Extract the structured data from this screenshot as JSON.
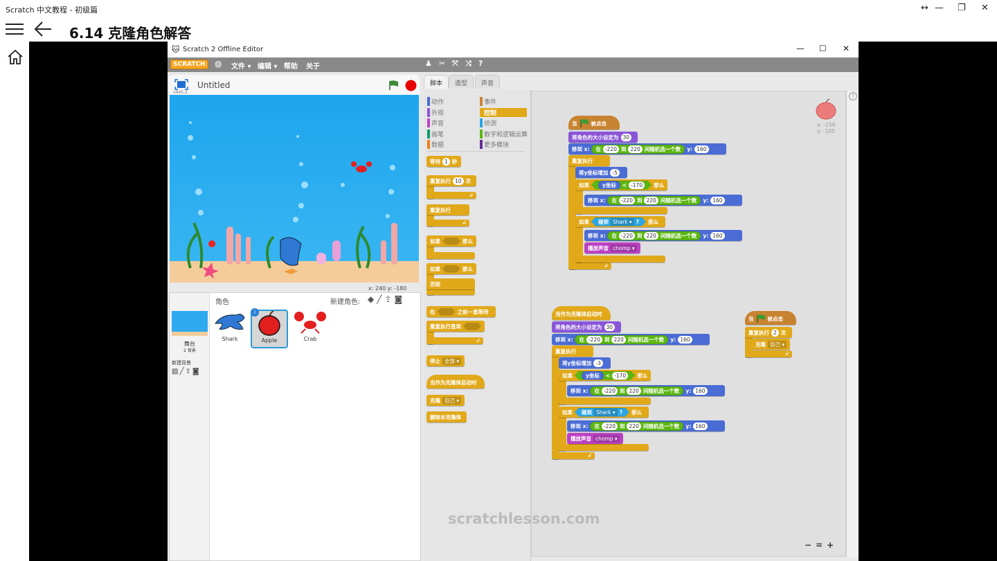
{
  "app": {
    "window_title": "Scratch 中文教程 - 初级篇",
    "lesson_title": "6.14  克隆角色解答",
    "icons": [
      "resize-icon",
      "minimize-icon",
      "restore-icon",
      "close-icon",
      "hamburger-icon",
      "back-arrow-icon",
      "home-icon"
    ]
  },
  "editor": {
    "window_title": "Scratch 2 Offline Editor",
    "logo": "SCRATCH",
    "menu": [
      "文件 ▾",
      "编辑 ▾",
      "帮助",
      "关于"
    ],
    "toolbar_icons": [
      "duplicate-icon",
      "delete-icon",
      "grow-icon",
      "shrink-icon",
      "help-icon"
    ],
    "project_name": "Untitled",
    "version": "v445.2",
    "stage_coords": "x: 240   y: -180",
    "sprite_pane": {
      "header": "角色",
      "new_sprite": "新建角色:",
      "stage_label": "舞台",
      "backdrops": "2 背景",
      "new_backdrop": "新建背景",
      "sprites": [
        "Shark",
        "Apple",
        "Crab"
      ],
      "selected": "Apple"
    },
    "tabs": [
      "脚本",
      "造型",
      "声音"
    ],
    "active_tab": "脚本",
    "categories_left": [
      "动作",
      "外观",
      "声音",
      "画笔",
      "数据"
    ],
    "categories_right": [
      "事件",
      "控制",
      "侦测",
      "数字和逻辑运算",
      "更多模块"
    ],
    "active_category": "控制",
    "category_colors": {
      "动作": "#4a6cd4",
      "外观": "#8a55d7",
      "声音": "#bb42c3",
      "画笔": "#0e9a6c",
      "数据": "#ee7d16",
      "事件": "#c88330",
      "控制": "#e1a91a",
      "侦测": "#2ca5e2",
      "数字和逻辑运算": "#5cb712",
      "更多模块": "#632d99"
    },
    "sprite_info": {
      "x": "x: -159",
      "y": "y: -105"
    },
    "watermark": "scratchlesson.com",
    "zoom_controls": [
      "−",
      "=",
      "+"
    ]
  },
  "palette": [
    {
      "cat": "control",
      "parts": [
        {
          "t": "label",
          "v": "等待"
        },
        {
          "t": "num",
          "v": "1"
        },
        {
          "t": "label",
          "v": "秒"
        }
      ]
    },
    {
      "cat": "control",
      "parts": [
        {
          "t": "label",
          "v": "重复执行"
        },
        {
          "t": "num",
          "v": "10"
        },
        {
          "t": "label",
          "v": "次"
        }
      ]
    },
    {
      "cat": "control",
      "parts": [
        {
          "t": "label",
          "v": "重复执行"
        }
      ]
    },
    {
      "cat": "control",
      "parts": [
        {
          "t": "label",
          "v": "如果"
        },
        {
          "t": "slot"
        },
        {
          "t": "label",
          "v": "那么"
        }
      ]
    },
    {
      "cat": "control",
      "parts": [
        {
          "t": "label",
          "v": "如果"
        },
        {
          "t": "slot"
        },
        {
          "t": "label",
          "v": "那么"
        }
      ]
    },
    {
      "cat": "control",
      "parts": [
        {
          "t": "label",
          "v": "否则"
        }
      ]
    },
    {
      "cat": "control",
      "parts": [
        {
          "t": "label",
          "v": "在"
        },
        {
          "t": "slot"
        },
        {
          "t": "label",
          "v": "之前一直等待"
        }
      ]
    },
    {
      "cat": "control",
      "parts": [
        {
          "t": "label",
          "v": "重复执行直到"
        },
        {
          "t": "slot"
        }
      ]
    },
    {
      "cat": "control",
      "parts": [
        {
          "t": "label",
          "v": "停止"
        },
        {
          "t": "drop",
          "v": "全部"
        }
      ]
    },
    {
      "cat": "control",
      "parts": [
        {
          "t": "label",
          "v": "当作为克隆体启动时"
        }
      ]
    },
    {
      "cat": "control",
      "parts": [
        {
          "t": "label",
          "v": "克隆"
        },
        {
          "t": "drop",
          "v": "自己"
        }
      ]
    },
    {
      "cat": "control",
      "parts": [
        {
          "t": "label",
          "v": "删除本克隆体"
        }
      ]
    }
  ],
  "scripts": [
    {
      "blocks": [
        {
          "cat": "events",
          "parts": [
            {
              "t": "label",
              "v": "当"
            },
            {
              "t": "flag"
            },
            {
              "t": "label",
              "v": "被点击"
            }
          ]
        },
        {
          "cat": "looks",
          "parts": [
            {
              "t": "label",
              "v": "将角色的大小设定为"
            },
            {
              "t": "num",
              "v": "30"
            }
          ]
        },
        {
          "cat": "motion",
          "parts": [
            {
              "t": "label",
              "v": "移到 x:"
            },
            {
              "t": "rep",
              "cat": "operators",
              "parts": [
                {
                  "t": "label",
                  "v": "在"
                },
                {
                  "t": "num",
                  "v": "-220"
                },
                {
                  "t": "label",
                  "v": "到"
                },
                {
                  "t": "num",
                  "v": "220"
                },
                {
                  "t": "label",
                  "v": "间随机选一个数"
                }
              ]
            },
            {
              "t": "label",
              "v": "y:"
            },
            {
              "t": "num",
              "v": "160"
            }
          ]
        },
        {
          "cat": "control",
          "parts": [
            {
              "t": "label",
              "v": "重复执行"
            }
          ]
        },
        {
          "cat": "motion",
          "parts": [
            {
              "t": "label",
              "v": "将y坐标增加"
            },
            {
              "t": "num",
              "v": "-5"
            }
          ]
        },
        {
          "cat": "control",
          "parts": [
            {
              "t": "label",
              "v": "如果"
            },
            {
              "t": "rep",
              "cat": "operators",
              "bool": true,
              "parts": [
                {
                  "t": "rep",
                  "cat": "motion",
                  "parts": [
                    {
                      "t": "label",
                      "v": "y坐标"
                    }
                  ]
                },
                {
                  "t": "label",
                  "v": "<"
                },
                {
                  "t": "num",
                  "v": "-170"
                }
              ]
            },
            {
              "t": "label",
              "v": "那么"
            }
          ]
        },
        {
          "cat": "motion",
          "parts": [
            {
              "t": "label",
              "v": "移到 x:"
            },
            {
              "t": "rep",
              "cat": "operators",
              "parts": [
                {
                  "t": "label",
                  "v": "在"
                },
                {
                  "t": "num",
                  "v": "-220"
                },
                {
                  "t": "label",
                  "v": "到"
                },
                {
                  "t": "num",
                  "v": "220"
                },
                {
                  "t": "label",
                  "v": "间随机选一个数"
                }
              ]
            },
            {
              "t": "label",
              "v": "y:"
            },
            {
              "t": "num",
              "v": "160"
            }
          ]
        },
        {
          "cat": "control",
          "parts": [
            {
              "t": "label",
              "v": "如果"
            },
            {
              "t": "rep",
              "cat": "sensing",
              "bool": true,
              "parts": [
                {
                  "t": "label",
                  "v": "碰到"
                },
                {
                  "t": "drop",
                  "v": "Shark"
                },
                {
                  "t": "label",
                  "v": "?"
                }
              ]
            },
            {
              "t": "label",
              "v": "那么"
            }
          ]
        },
        {
          "cat": "motion",
          "parts": [
            {
              "t": "label",
              "v": "移到 x:"
            },
            {
              "t": "rep",
              "cat": "operators",
              "parts": [
                {
                  "t": "label",
                  "v": "在"
                },
                {
                  "t": "num",
                  "v": "-220"
                },
                {
                  "t": "label",
                  "v": "到"
                },
                {
                  "t": "num",
                  "v": "220"
                },
                {
                  "t": "label",
                  "v": "间随机选一个数"
                }
              ]
            },
            {
              "t": "label",
              "v": "y:"
            },
            {
              "t": "num",
              "v": "160"
            }
          ]
        },
        {
          "cat": "sound",
          "parts": [
            {
              "t": "label",
              "v": "播放声音"
            },
            {
              "t": "drop",
              "v": "chomp"
            }
          ]
        }
      ]
    },
    {
      "blocks": [
        {
          "cat": "control",
          "parts": [
            {
              "t": "label",
              "v": "当作为克隆体启动时"
            }
          ]
        },
        {
          "cat": "looks",
          "parts": [
            {
              "t": "label",
              "v": "将角色的大小设定为"
            },
            {
              "t": "num",
              "v": "30"
            }
          ]
        },
        {
          "cat": "motion",
          "parts": [
            {
              "t": "label",
              "v": "移到 x:"
            },
            {
              "t": "rep",
              "cat": "operators",
              "parts": [
                {
                  "t": "label",
                  "v": "在"
                },
                {
                  "t": "num",
                  "v": "-220"
                },
                {
                  "t": "label",
                  "v": "到"
                },
                {
                  "t": "num",
                  "v": "220"
                },
                {
                  "t": "label",
                  "v": "间随机选一个数"
                }
              ]
            },
            {
              "t": "label",
              "v": "y:"
            },
            {
              "t": "num",
              "v": "160"
            }
          ]
        },
        {
          "cat": "control",
          "parts": [
            {
              "t": "label",
              "v": "重复执行"
            }
          ]
        },
        {
          "cat": "motion",
          "parts": [
            {
              "t": "label",
              "v": "将y坐标增加"
            },
            {
              "t": "num",
              "v": "-3"
            }
          ]
        },
        {
          "cat": "control",
          "parts": [
            {
              "t": "label",
              "v": "如果"
            },
            {
              "t": "rep",
              "cat": "operators",
              "bool": true,
              "parts": [
                {
                  "t": "rep",
                  "cat": "motion",
                  "parts": [
                    {
                      "t": "label",
                      "v": "y坐标"
                    }
                  ]
                },
                {
                  "t": "label",
                  "v": "<"
                },
                {
                  "t": "num",
                  "v": "-170"
                }
              ]
            },
            {
              "t": "label",
              "v": "那么"
            }
          ]
        },
        {
          "cat": "motion",
          "parts": [
            {
              "t": "label",
              "v": "移到 x:"
            },
            {
              "t": "rep",
              "cat": "operators",
              "parts": [
                {
                  "t": "label",
                  "v": "在"
                },
                {
                  "t": "num",
                  "v": "-220"
                },
                {
                  "t": "label",
                  "v": "到"
                },
                {
                  "t": "num",
                  "v": "220"
                },
                {
                  "t": "label",
                  "v": "间随机选一个数"
                }
              ]
            },
            {
              "t": "label",
              "v": "y:"
            },
            {
              "t": "num",
              "v": "160"
            }
          ]
        },
        {
          "cat": "control",
          "parts": [
            {
              "t": "label",
              "v": "如果"
            },
            {
              "t": "rep",
              "cat": "sensing",
              "bool": true,
              "parts": [
                {
                  "t": "label",
                  "v": "碰到"
                },
                {
                  "t": "drop",
                  "v": "Shark"
                },
                {
                  "t": "label",
                  "v": "?"
                }
              ]
            },
            {
              "t": "label",
              "v": "那么"
            }
          ]
        },
        {
          "cat": "motion",
          "parts": [
            {
              "t": "label",
              "v": "移到 x:"
            },
            {
              "t": "rep",
              "cat": "operators",
              "parts": [
                {
                  "t": "label",
                  "v": "在"
                },
                {
                  "t": "num",
                  "v": "-220"
                },
                {
                  "t": "label",
                  "v": "到"
                },
                {
                  "t": "num",
                  "v": "220"
                },
                {
                  "t": "label",
                  "v": "间随机选一个数"
                }
              ]
            },
            {
              "t": "label",
              "v": "y:"
            },
            {
              "t": "num",
              "v": "160"
            }
          ]
        },
        {
          "cat": "sound",
          "parts": [
            {
              "t": "label",
              "v": "播放声音"
            },
            {
              "t": "drop",
              "v": "chomp"
            }
          ]
        }
      ]
    },
    {
      "blocks": [
        {
          "cat": "events",
          "parts": [
            {
              "t": "label",
              "v": "当"
            },
            {
              "t": "flag"
            },
            {
              "t": "label",
              "v": "被点击"
            }
          ]
        },
        {
          "cat": "control",
          "parts": [
            {
              "t": "label",
              "v": "重复执行"
            },
            {
              "t": "num",
              "v": "2"
            },
            {
              "t": "label",
              "v": "次"
            }
          ]
        },
        {
          "cat": "control",
          "parts": [
            {
              "t": "label",
              "v": "克隆"
            },
            {
              "t": "drop",
              "v": "自己"
            }
          ]
        }
      ]
    }
  ]
}
